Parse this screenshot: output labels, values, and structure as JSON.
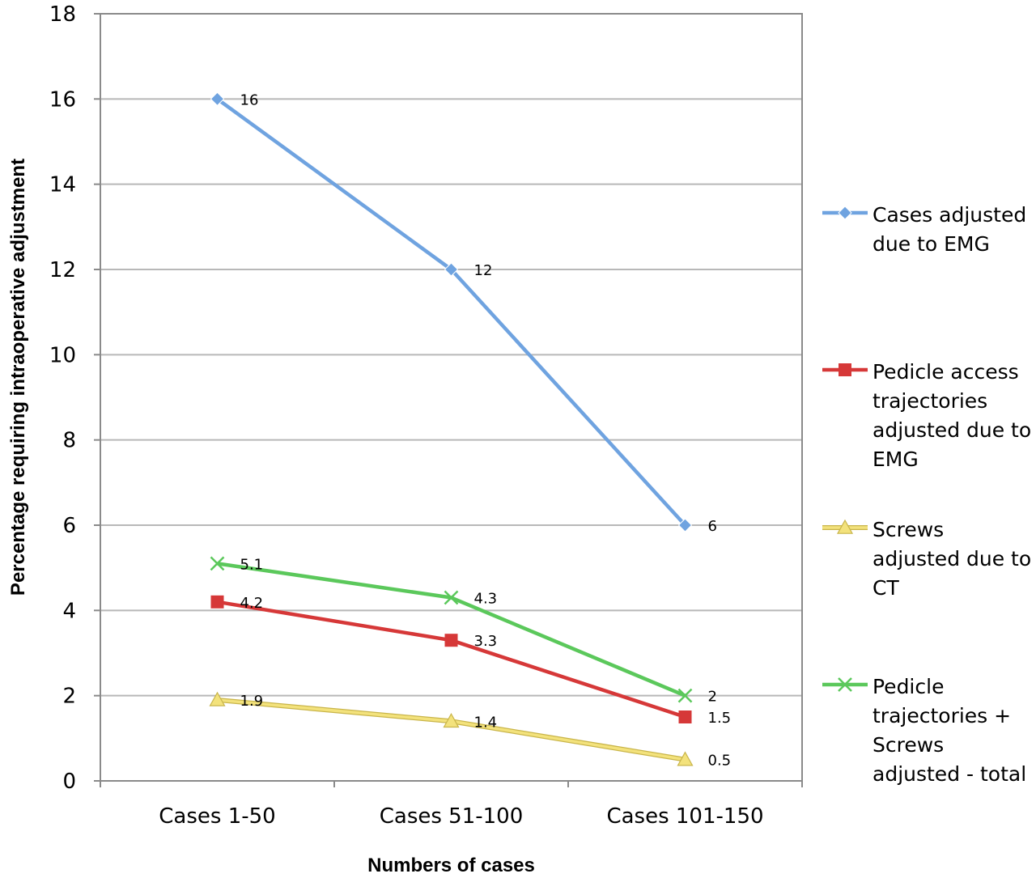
{
  "chart_data": {
    "type": "line",
    "categories": [
      "Cases 1-50",
      "Cases 51-100",
      "Cases 101-150"
    ],
    "xlabel": "Numbers of cases",
    "ylabel": "Percentage requiring intraoperative adjustment",
    "ylim": [
      0,
      18
    ],
    "yticks": [
      0,
      2,
      4,
      6,
      8,
      10,
      12,
      14,
      16,
      18
    ],
    "grid": true,
    "legend_position": "right",
    "series": [
      {
        "name": "Cases adjusted due to EMG",
        "legend_lines": [
          "Cases adjusted",
          "due to EMG"
        ],
        "values": [
          16,
          12,
          6
        ],
        "labels": [
          "16",
          "12",
          "6"
        ],
        "color": "#6fa3e0",
        "marker": "diamond"
      },
      {
        "name": "Pedicle access trajectories adjusted due to EMG",
        "legend_lines": [
          "Pedicle access",
          "trajectories",
          "adjusted due to",
          "EMG"
        ],
        "values": [
          4.2,
          3.3,
          1.5
        ],
        "labels": [
          "4.2",
          "3.3",
          "1.5"
        ],
        "color": "#d63838",
        "marker": "square"
      },
      {
        "name": "Screws adjusted due to CT",
        "legend_lines": [
          "Screws",
          "adjusted due to",
          "CT"
        ],
        "values": [
          1.9,
          1.4,
          0.5
        ],
        "labels": [
          "1.9",
          "1.4",
          "0.5"
        ],
        "color": "#f3e27c",
        "marker": "triangle"
      },
      {
        "name": "Pedicle trajectories + Screws adjusted - total",
        "legend_lines": [
          "Pedicle",
          "trajectories +",
          "Screws",
          "adjusted - total"
        ],
        "values": [
          5.1,
          4.3,
          2
        ],
        "labels": [
          "5.1",
          "4.3",
          "2"
        ],
        "color": "#5bc85b",
        "marker": "x"
      }
    ]
  }
}
